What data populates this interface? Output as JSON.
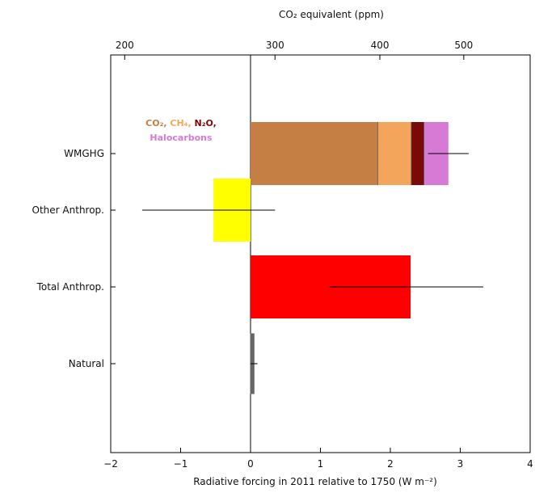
{
  "chart_data": {
    "type": "bar",
    "orientation": "horizontal",
    "title": "",
    "xlabel": "Radiative forcing in 2011 relative to 1750 (W m⁻²)",
    "top_axis_label": "CO₂ equivalent (ppm)",
    "xlim": [
      -2,
      4
    ],
    "xticks": [
      -2,
      -1,
      0,
      1,
      2,
      3,
      4
    ],
    "top_ticks": [
      {
        "label": "200",
        "at_forcing": -1.8
      },
      {
        "label": "300",
        "at_forcing": 0.35
      },
      {
        "label": "400",
        "at_forcing": 1.85
      },
      {
        "label": "500",
        "at_forcing": 3.05
      }
    ],
    "categories": [
      "WMGHG",
      "Other Anthrop.",
      "Total Anthrop.",
      "Natural"
    ],
    "grid": false,
    "bars": [
      {
        "category": "WMGHG",
        "segments": [
          {
            "name": "CO₂",
            "start": 0,
            "end": 1.82,
            "color": "#c57f45"
          },
          {
            "name": "CH₄",
            "start": 1.82,
            "end": 2.3,
            "color": "#f3a55b"
          },
          {
            "name": "N₂O",
            "start": 2.3,
            "end": 2.48,
            "color": "#7a0a0a"
          },
          {
            "name": "Halocarbons",
            "start": 2.48,
            "end": 2.83,
            "color": "#d77ad5"
          }
        ],
        "total": 2.83,
        "uncertainty": [
          2.54,
          3.12
        ]
      },
      {
        "category": "Other Anthrop.",
        "segments": [
          {
            "start": -0.53,
            "end": 0,
            "color": "#ffff00"
          }
        ],
        "total": -0.53,
        "uncertainty": [
          -1.55,
          0.35
        ]
      },
      {
        "category": "Total Anthrop.",
        "segments": [
          {
            "start": 0,
            "end": 2.29,
            "color": "#ff0000"
          }
        ],
        "total": 2.29,
        "uncertainty": [
          1.13,
          3.33
        ]
      },
      {
        "category": "Natural",
        "segments": [
          {
            "start": 0,
            "end": 0.05,
            "color": "#666666"
          }
        ],
        "total": 0.05,
        "uncertainty": [
          0.0,
          0.1
        ]
      }
    ],
    "legend": {
      "line1": [
        {
          "text": "CO₂",
          "color": "#c57f45"
        },
        {
          "text": ", ",
          "color": "#c57f45"
        },
        {
          "text": "CH₄",
          "color": "#f3a55b"
        },
        {
          "text": ", ",
          "color": "#f3a55b"
        },
        {
          "text": "N₂O",
          "color": "#7a0a0a"
        },
        {
          "text": ",",
          "color": "#7a0a0a"
        }
      ],
      "line2": [
        {
          "text": "Halocarbons",
          "color": "#d77ad5"
        }
      ]
    }
  }
}
